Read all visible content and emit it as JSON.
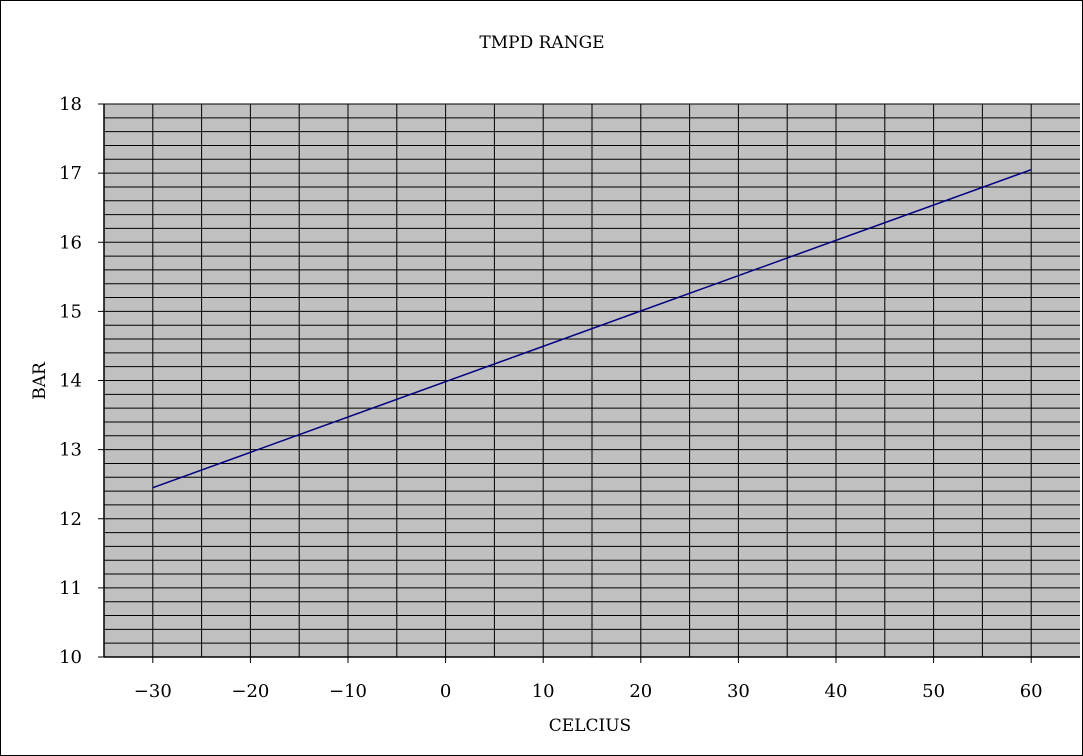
{
  "chart_data": {
    "type": "line",
    "title": "TMPD RANGE",
    "xlabel": "CELCIUS",
    "ylabel": "BAR",
    "xlim": [
      -35,
      65
    ],
    "ylim": [
      10,
      18
    ],
    "xticks": [
      -30,
      -20,
      -10,
      0,
      10,
      20,
      30,
      40,
      50,
      60
    ],
    "yticks": [
      10,
      11,
      12,
      13,
      14,
      15,
      16,
      17,
      18
    ],
    "x_grid_step": 5,
    "y_grid_step": 0.2,
    "grid": true,
    "series": [
      {
        "x": [
          -30,
          60
        ],
        "y": [
          12.45,
          17.05
        ]
      }
    ],
    "colors": {
      "plot_background": "#c0c0c0",
      "grid": "#000000",
      "line": "#000080"
    }
  }
}
